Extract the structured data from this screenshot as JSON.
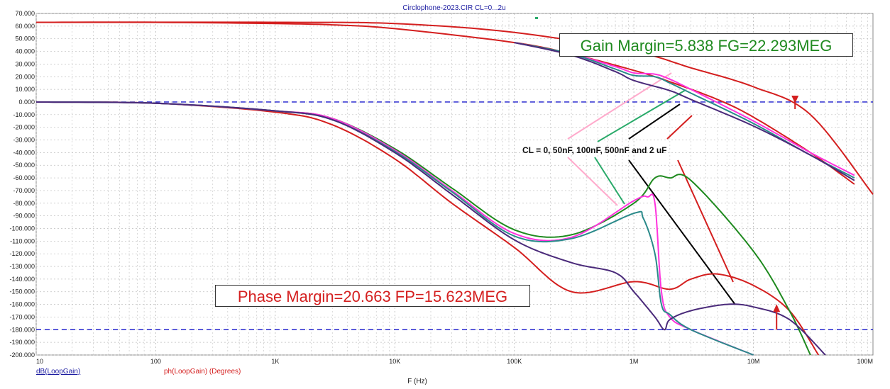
{
  "chart_data": {
    "type": "line",
    "title": "Circlophone-2023.CIR CL=0...2u",
    "xlabel": "F (Hz)",
    "x_scale": "log",
    "xlim": [
      10,
      100000000
    ],
    "ylim": [
      -200,
      70
    ],
    "x_ticks": [
      10,
      100,
      1000,
      10000,
      100000,
      1000000,
      10000000,
      100000000
    ],
    "x_tick_labels": [
      "10",
      "100",
      "1K",
      "10K",
      "100K",
      "1M",
      "10M",
      "100M"
    ],
    "y_ticks": [
      70,
      60,
      50,
      40,
      30,
      20,
      10,
      0,
      -10,
      -20,
      -30,
      -40,
      -50,
      -60,
      -70,
      -80,
      -90,
      -100,
      -110,
      -120,
      -130,
      -140,
      -150,
      -160,
      -170,
      -180,
      -190,
      -200
    ],
    "y_tick_labels": [
      "70.000",
      "60.000",
      "50.000",
      "40.000",
      "30.000",
      "20.000",
      "10.000",
      "0.000",
      "-10.000",
      "-20.000",
      "-30.000",
      "-40.000",
      "-50.000",
      "-60.000",
      "-70.000",
      "-80.000",
      "-90.000",
      "-100.000",
      "-110.000",
      "-120.000",
      "-130.000",
      "-140.000",
      "-150.000",
      "-160.000",
      "-170.000",
      "-180.000",
      "-190.000",
      "-200.000"
    ],
    "grid": true,
    "legend": [
      "dB(LoopGain)",
      "ph(LoopGain) (Degrees)"
    ],
    "ref_lines": [
      0,
      -180
    ],
    "series": [
      {
        "color": "#d41f1f",
        "x": [
          10,
          1000,
          10000,
          100000,
          1000000,
          3000000,
          10000000,
          30000000,
          100000000
        ],
        "y": [
          63,
          63,
          62,
          55,
          40,
          27,
          12,
          -10,
          -73
        ]
      },
      {
        "color": "#d41f1f",
        "x": [
          10,
          100,
          1000,
          3000,
          10000,
          100000,
          300000,
          1000000,
          2000000,
          5000000,
          10000000,
          30000000,
          70000000
        ],
        "y": [
          63,
          63,
          62,
          61,
          58,
          47,
          38,
          25,
          16,
          2,
          -12,
          -40,
          -65
        ]
      },
      {
        "color": "#ff33dd",
        "x": [
          100000,
          300000,
          700000,
          1000000,
          1500000,
          2000000,
          3000000,
          10000000,
          30000000,
          70000000
        ],
        "y": [
          47,
          38,
          28,
          23,
          22,
          18,
          10,
          -15,
          -40,
          -58
        ]
      },
      {
        "color": "#2a8a8a",
        "x": [
          100000,
          300000,
          700000,
          1000000,
          1500000,
          2000000,
          3000000,
          10000000,
          30000000,
          70000000
        ],
        "y": [
          47,
          38,
          26,
          21,
          20,
          15,
          7,
          -17,
          -42,
          -60
        ]
      },
      {
        "color": "#4a2a7a",
        "x": [
          100000,
          300000,
          700000,
          1000000,
          2000000,
          3000000,
          10000000,
          30000000,
          70000000
        ],
        "y": [
          47,
          37,
          24,
          17,
          9,
          2,
          -19,
          -42,
          -62
        ]
      },
      {
        "color": "#d41f1f",
        "x": [
          10,
          100,
          1000,
          3000,
          10000,
          30000,
          100000,
          300000,
          1000000,
          2000000,
          3000000,
          5000000,
          10000000,
          20000000,
          35000000
        ],
        "y": [
          0,
          -1,
          -8,
          -18,
          -45,
          -80,
          -115,
          -150,
          -142,
          -148,
          -140,
          -136,
          -145,
          -165,
          -200
        ]
      },
      {
        "color": "#1f8a1f",
        "x": [
          10,
          100,
          1000,
          3000,
          10000,
          30000,
          100000,
          300000,
          1000000,
          1500000,
          2000000,
          3000000,
          10000000,
          20000000,
          30000000
        ],
        "y": [
          0,
          -1,
          -7,
          -13,
          -37,
          -68,
          -101,
          -105,
          -80,
          -60,
          -60,
          -62,
          -118,
          -165,
          -200
        ]
      },
      {
        "color": "#ff33dd",
        "x": [
          10,
          100,
          1000,
          3000,
          10000,
          30000,
          100000,
          300000,
          1000000,
          1300000,
          1500000,
          1700000,
          2000000,
          3000000,
          10000000
        ],
        "y": [
          0,
          -1,
          -7,
          -13,
          -38,
          -70,
          -104,
          -107,
          -78,
          -75,
          -80,
          -150,
          -170,
          -180,
          -200
        ]
      },
      {
        "color": "#2a8a8a",
        "x": [
          10,
          100,
          1000,
          3000,
          10000,
          30000,
          100000,
          300000,
          1000000,
          1200000,
          1500000,
          1700000,
          2000000,
          3000000,
          10000000
        ],
        "y": [
          0,
          -1,
          -7,
          -14,
          -39,
          -71,
          -106,
          -108,
          -88,
          -92,
          -120,
          -160,
          -168,
          -180,
          -200
        ]
      },
      {
        "color": "#4a2a7a",
        "x": [
          10,
          100,
          1000,
          3000,
          10000,
          30000,
          100000,
          300000,
          700000,
          1000000,
          1500000,
          1800000,
          2000000,
          3000000,
          6000000,
          10000000,
          20000000,
          40000000
        ],
        "y": [
          0,
          -1,
          -7,
          -14,
          -40,
          -73,
          -109,
          -127,
          -135,
          -150,
          -170,
          -180,
          -172,
          -165,
          -160,
          -162,
          -172,
          -200
        ]
      }
    ],
    "annotations": [
      "Gain Margin=5.838 FG=22.293MEG",
      "Phase Margin=20.663 FP=15.623MEG",
      "CL = 0, 50nF, 100nF, 500nF and 2 uF"
    ],
    "colors": {
      "background": "#ffffff",
      "grid": "#bfbfbf",
      "ref": "#1a1acc",
      "gain_label": "#1f8a1f",
      "phase_label": "#d41f1f"
    }
  }
}
